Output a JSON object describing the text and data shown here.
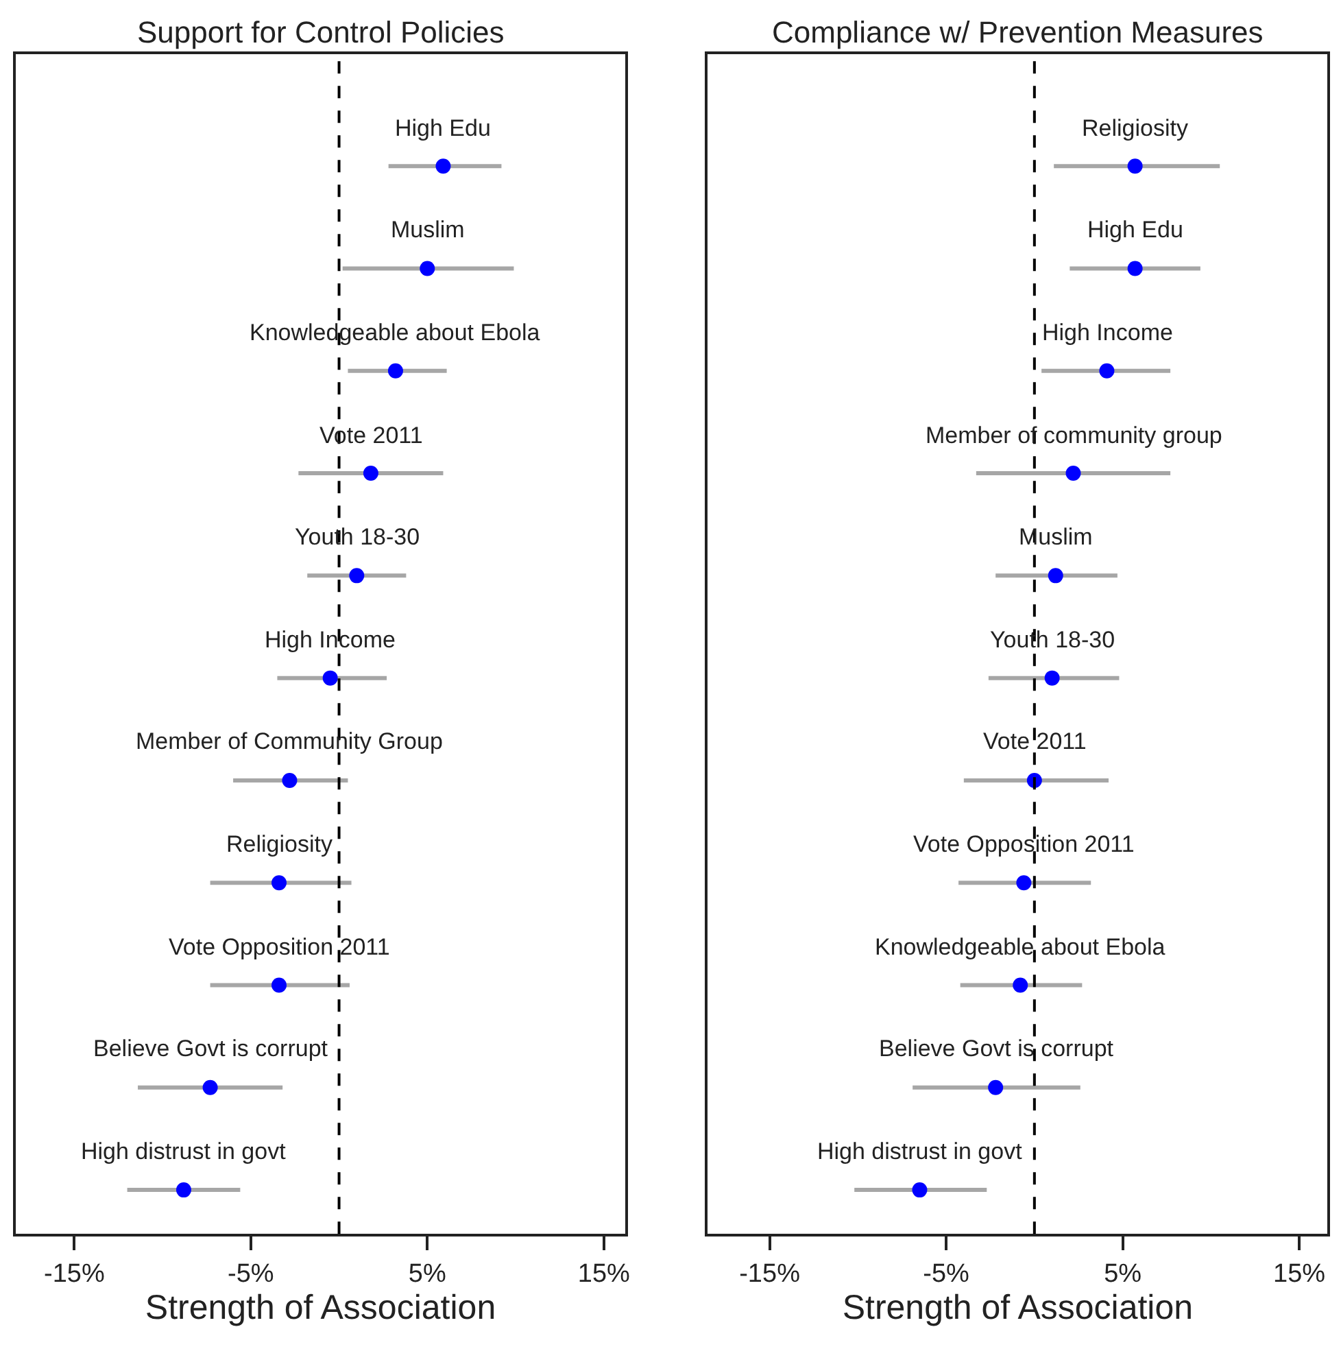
{
  "chart_data": [
    {
      "type": "scatter",
      "orientation": "horizontal",
      "title": "Support for Control Policies",
      "xlabel": "Strength of Association",
      "categories": [
        "High Edu",
        "Muslim",
        "Knowledgeable about Ebola",
        "Vote 2011",
        "Youth 18-30",
        "High Income",
        "Member of Community Group",
        "Religiosity",
        "Vote Opposition 2011",
        "Believe Govt is corrupt",
        "High distrust in govt"
      ],
      "series": [
        {
          "color": "#0000ff",
          "values": [
            5.9,
            5.0,
            3.2,
            1.8,
            1.0,
            -0.5,
            -2.8,
            -3.4,
            -3.4,
            -7.3,
            -8.8
          ],
          "errors": [
            [
              2.8,
              9.2
            ],
            [
              0.2,
              9.9
            ],
            [
              0.5,
              6.1
            ],
            [
              -2.3,
              5.9
            ],
            [
              -1.8,
              3.8
            ],
            [
              -3.5,
              2.7
            ],
            [
              -6.0,
              0.5
            ],
            [
              -7.3,
              0.7
            ],
            [
              -7.3,
              0.6
            ],
            [
              -11.4,
              -3.2
            ],
            [
              -12.0,
              -5.6
            ]
          ]
        }
      ],
      "xlim": [
        -18.3,
        16.2
      ],
      "xticks": [
        {
          "value": -15,
          "label": "-15%"
        },
        {
          "value": -5,
          "label": "-5%"
        },
        {
          "value": 5,
          "label": "5%"
        },
        {
          "value": 15,
          "label": "15%"
        }
      ],
      "ref_lines": [
        {
          "axis": "x",
          "value": 0,
          "color": "#000000",
          "line_style": "dashed"
        }
      ],
      "marker": "circle",
      "tick_labels": "x"
    },
    {
      "type": "scatter",
      "orientation": "horizontal",
      "title": "Compliance w/ Prevention Measures",
      "xlabel": "Strength of Association",
      "categories": [
        "Religiosity",
        "High Edu",
        "High Income",
        "Member of community group",
        "Muslim",
        "Youth 18-30",
        "Vote 2011",
        "Vote Opposition 2011",
        "Knowledgeable about Ebola",
        "Believe Govt is corrupt",
        "High distrust in govt"
      ],
      "series": [
        {
          "color": "#0000ff",
          "values": [
            5.7,
            5.7,
            4.1,
            2.2,
            1.2,
            1.0,
            0.0,
            -0.6,
            -0.8,
            -2.2,
            -6.5
          ],
          "errors": [
            [
              1.1,
              10.5
            ],
            [
              2.0,
              9.4
            ],
            [
              0.4,
              7.7
            ],
            [
              -3.3,
              7.7
            ],
            [
              -2.2,
              4.7
            ],
            [
              -2.6,
              4.8
            ],
            [
              -4.0,
              4.2
            ],
            [
              -4.3,
              3.2
            ],
            [
              -4.2,
              2.7
            ],
            [
              -6.9,
              2.6
            ],
            [
              -10.2,
              -2.7
            ]
          ]
        }
      ],
      "xlim": [
        -18.5,
        16.6
      ],
      "xticks": [
        {
          "value": -15,
          "label": "-15%"
        },
        {
          "value": -5,
          "label": "-5%"
        },
        {
          "value": 5,
          "label": "5%"
        },
        {
          "value": 15,
          "label": "15%"
        }
      ],
      "ref_lines": [
        {
          "axis": "x",
          "value": 0,
          "color": "#000000",
          "line_style": "dashed"
        }
      ],
      "marker": "circle",
      "tick_labels": "x"
    }
  ]
}
